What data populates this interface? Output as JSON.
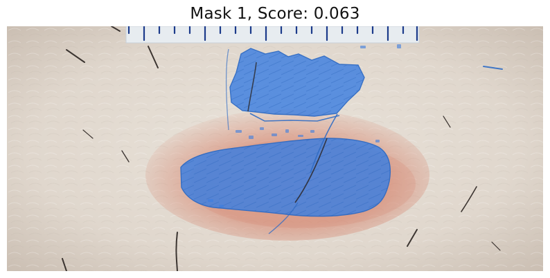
{
  "figure": {
    "title": "Mask 1, Score: 0.063"
  },
  "colors": {
    "skin": "#e3dcd3",
    "skin_shadow": "#cfc5ba",
    "lesion_rim": "#d47a62",
    "mask_fill": "#3f7fe0",
    "mask_outline": "#2f6bc4",
    "ruler_bg": "#e7ecf0",
    "ruler_ticks": "#1b3a8a",
    "hair": "#2a2320"
  },
  "annotations": {
    "ruler": "ruler-icon",
    "mask": "segmentation-mask",
    "lesion": "skin-lesion"
  }
}
